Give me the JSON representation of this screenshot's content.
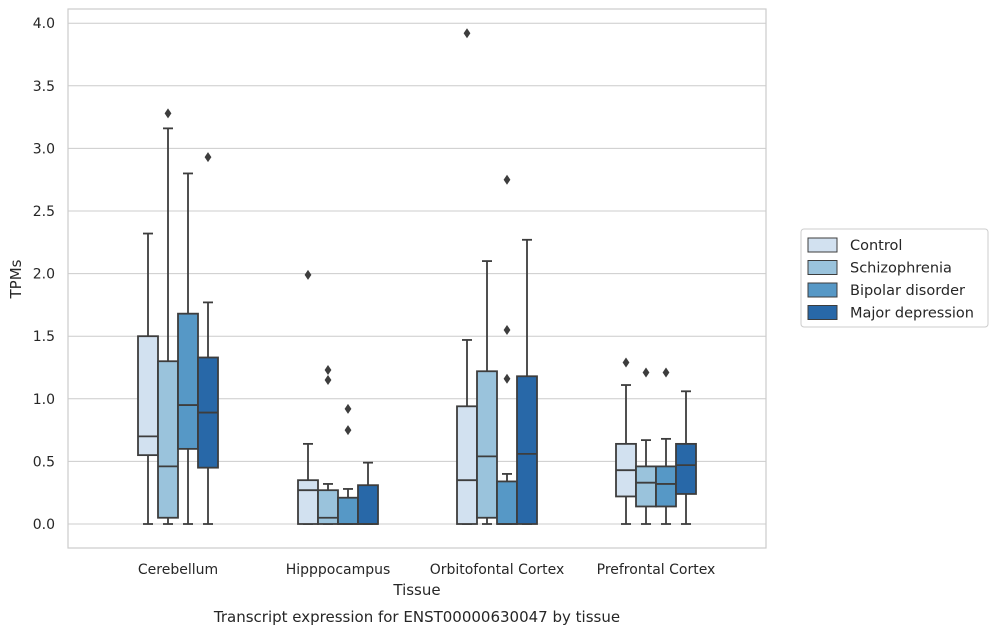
{
  "chart_data": {
    "type": "box",
    "caption": "Transcript expression for ENST00000630047 by tissue",
    "xlabel": "Tissue",
    "ylabel": "TPMs",
    "ylim": [
      -0.19,
      4.12
    ],
    "yticks": [
      0.0,
      0.5,
      1.0,
      1.5,
      2.0,
      2.5,
      3.0,
      3.5,
      4.0
    ],
    "ytick_labels": [
      "0.0",
      "0.5",
      "1.0",
      "1.5",
      "2.0",
      "2.5",
      "3.0",
      "3.5",
      "4.0"
    ],
    "grid": "horizontal",
    "legend_position": "right",
    "categories": [
      "Cerebellum",
      "Hipppocampus",
      "Orbitofontal Cortex",
      "Prefrontal Cortex"
    ],
    "series": [
      {
        "name": "Control",
        "color": "#d2e1f0",
        "boxes": [
          {
            "whislo": 0.0,
            "q1": 0.55,
            "med": 0.7,
            "q3": 1.5,
            "whishi": 2.32,
            "fliers": []
          },
          {
            "whislo": 0.0,
            "q1": 0.0,
            "med": 0.27,
            "q3": 0.35,
            "whishi": 0.64,
            "fliers": [
              1.99
            ]
          },
          {
            "whislo": 0.0,
            "q1": 0.0,
            "med": 0.35,
            "q3": 0.94,
            "whishi": 1.47,
            "fliers": [
              3.92
            ]
          },
          {
            "whislo": 0.0,
            "q1": 0.22,
            "med": 0.43,
            "q3": 0.64,
            "whishi": 1.11,
            "fliers": [
              1.29
            ]
          }
        ]
      },
      {
        "name": "Schizophrenia",
        "color": "#9ac3dc",
        "boxes": [
          {
            "whislo": 0.0,
            "q1": 0.05,
            "med": 0.46,
            "q3": 1.3,
            "whishi": 3.16,
            "fliers": [
              3.28
            ]
          },
          {
            "whislo": 0.0,
            "q1": 0.0,
            "med": 0.05,
            "q3": 0.27,
            "whishi": 0.32,
            "fliers": [
              1.15,
              1.23
            ]
          },
          {
            "whislo": 0.0,
            "q1": 0.05,
            "med": 0.54,
            "q3": 1.22,
            "whishi": 2.1,
            "fliers": []
          },
          {
            "whislo": 0.0,
            "q1": 0.14,
            "med": 0.33,
            "q3": 0.46,
            "whishi": 0.67,
            "fliers": [
              1.21
            ]
          }
        ]
      },
      {
        "name": "Bipolar disorder",
        "color": "#5698c6",
        "boxes": [
          {
            "whislo": 0.0,
            "q1": 0.6,
            "med": 0.95,
            "q3": 1.68,
            "whishi": 2.8,
            "fliers": []
          },
          {
            "whislo": 0.0,
            "q1": 0.0,
            "med": 0.0,
            "q3": 0.21,
            "whishi": 0.28,
            "fliers": [
              0.75,
              0.92
            ]
          },
          {
            "whislo": 0.0,
            "q1": 0.0,
            "med": 0.0,
            "q3": 0.34,
            "whishi": 0.4,
            "fliers": [
              1.16,
              1.55,
              2.75
            ]
          },
          {
            "whislo": 0.0,
            "q1": 0.14,
            "med": 0.32,
            "q3": 0.46,
            "whishi": 0.68,
            "fliers": [
              1.21
            ]
          }
        ]
      },
      {
        "name": "Major depression",
        "color": "#2868a8",
        "boxes": [
          {
            "whislo": 0.0,
            "q1": 0.45,
            "med": 0.89,
            "q3": 1.33,
            "whishi": 1.77,
            "fliers": [
              2.93
            ]
          },
          {
            "whislo": 0.0,
            "q1": 0.0,
            "med": 0.0,
            "q3": 0.31,
            "whishi": 0.49,
            "fliers": []
          },
          {
            "whislo": 0.0,
            "q1": 0.0,
            "med": 0.56,
            "q3": 1.18,
            "whishi": 2.27,
            "fliers": []
          },
          {
            "whislo": 0.0,
            "q1": 0.24,
            "med": 0.47,
            "q3": 0.64,
            "whishi": 1.06,
            "fliers": []
          }
        ]
      }
    ]
  }
}
